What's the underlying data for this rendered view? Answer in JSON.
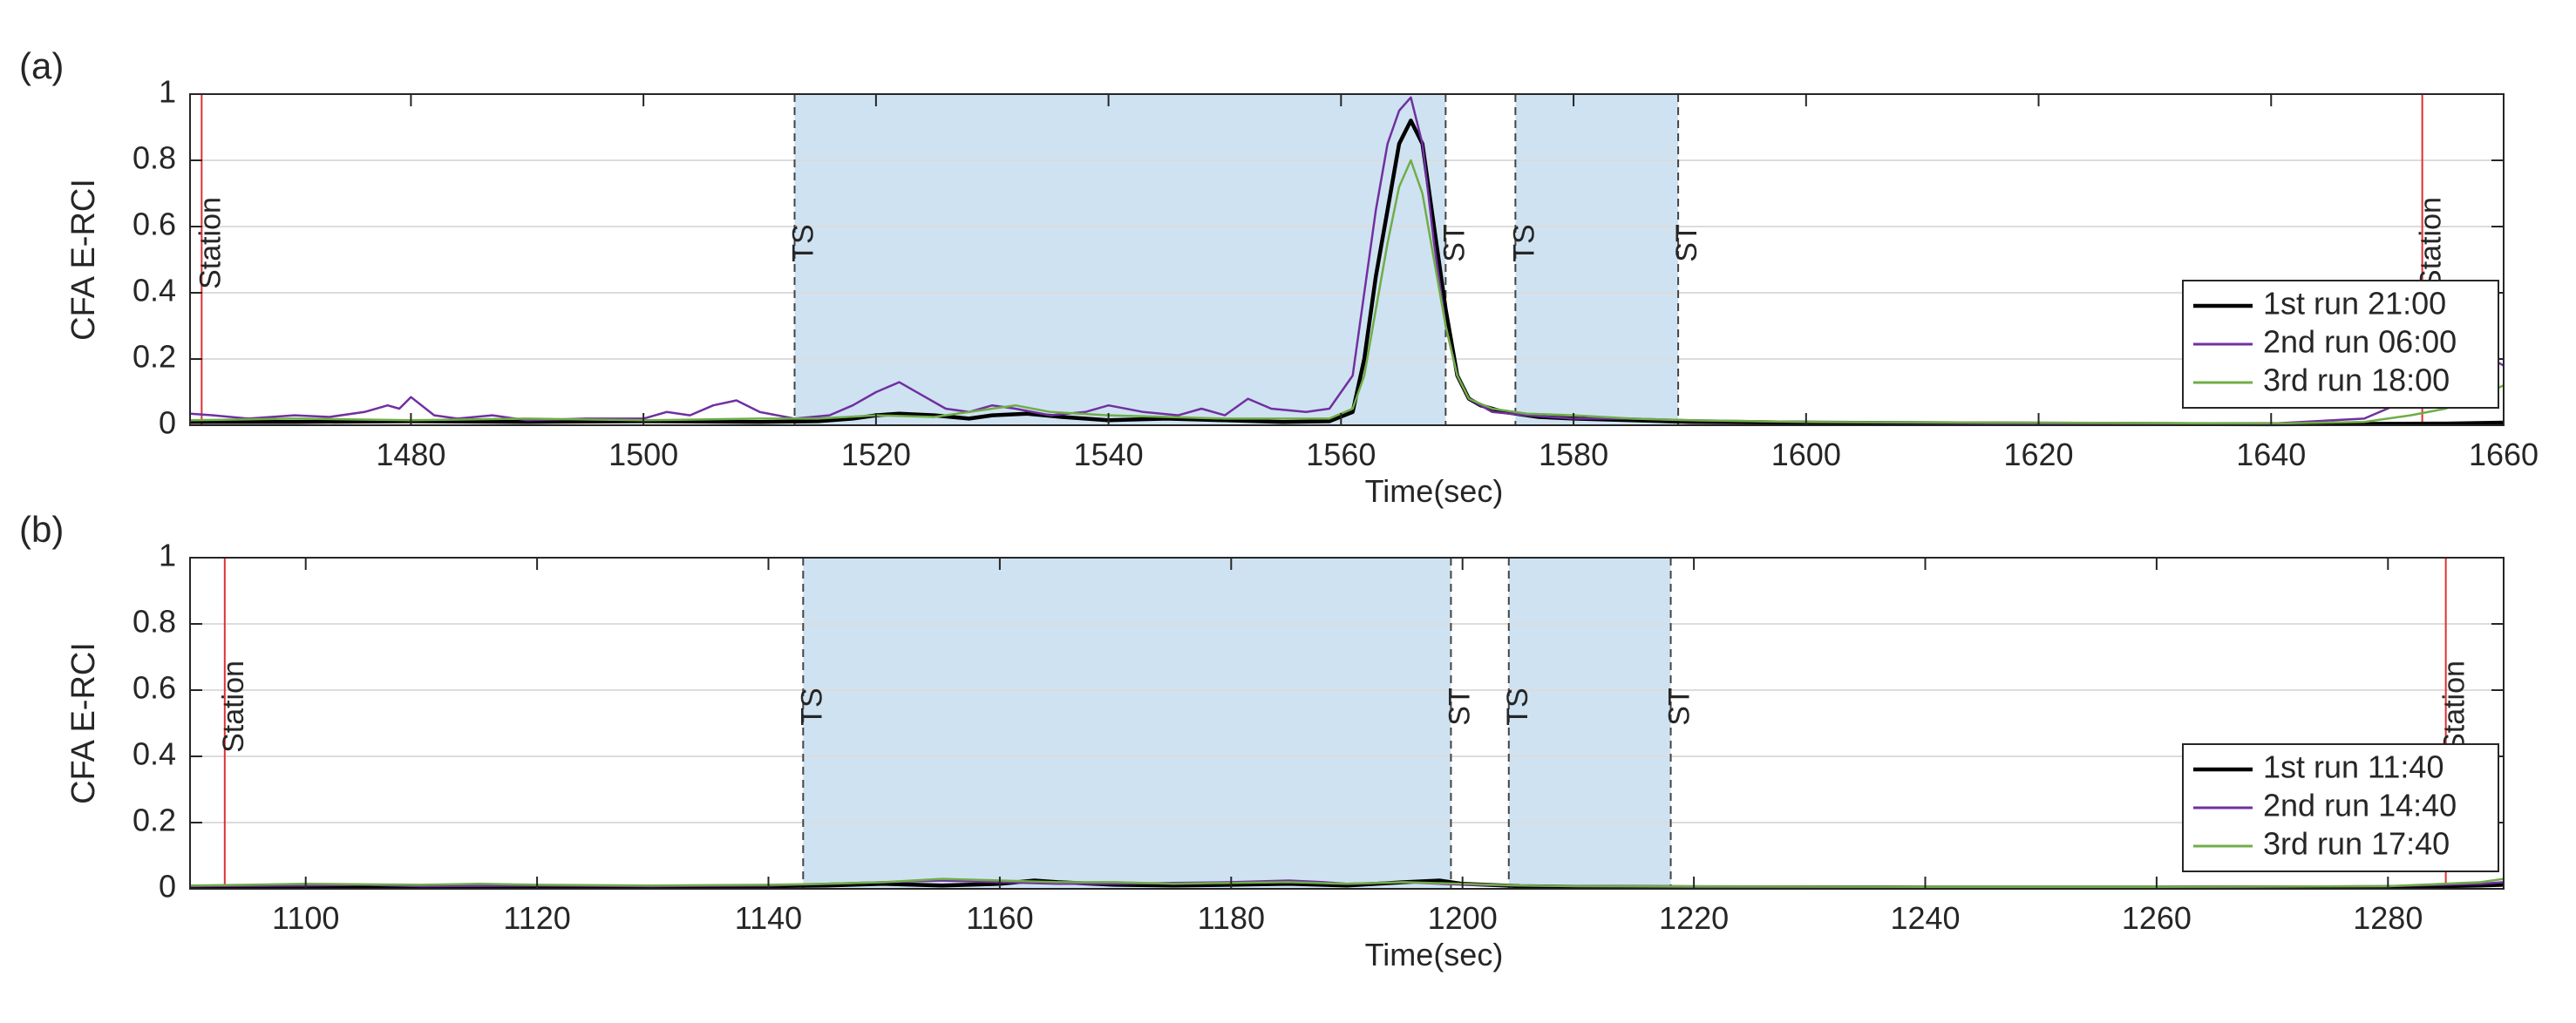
{
  "chart_data": [
    {
      "panel_label": "(a)",
      "type": "line",
      "ylabel": "CFA E-RCI",
      "xlabel": "Time(sec)",
      "xlim": [
        1461,
        1660
      ],
      "ylim": [
        0,
        1
      ],
      "xticks": [
        1480,
        1500,
        1520,
        1540,
        1560,
        1580,
        1600,
        1620,
        1640,
        1660
      ],
      "yticks": [
        0,
        0.2,
        0.4,
        0.6,
        0.8,
        1
      ],
      "ytick_labels": [
        "0",
        "0.2",
        "0.4",
        "0.6",
        "0.8",
        "1"
      ],
      "grid": "horizontal",
      "legend_position": "lower-right",
      "shaded_regions": [
        [
          1513,
          1569
        ],
        [
          1575,
          1589
        ]
      ],
      "markers": [
        {
          "x": 1462,
          "label": "Station",
          "style": "red"
        },
        {
          "x": 1513,
          "label": "TS",
          "style": "dashed"
        },
        {
          "x": 1569,
          "label": "ST",
          "style": "dashed"
        },
        {
          "x": 1575,
          "label": "TS",
          "style": "dashed"
        },
        {
          "x": 1589,
          "label": "ST",
          "style": "dashed"
        },
        {
          "x": 1653,
          "label": "Station",
          "style": "red"
        }
      ],
      "series": [
        {
          "name": "1st run 21:00",
          "color": "#000000",
          "points": [
            [
              1461,
              0.01
            ],
            [
              1470,
              0.01
            ],
            [
              1480,
              0.012
            ],
            [
              1490,
              0.01
            ],
            [
              1500,
              0.012
            ],
            [
              1510,
              0.01
            ],
            [
              1515,
              0.012
            ],
            [
              1518,
              0.02
            ],
            [
              1520,
              0.03
            ],
            [
              1522,
              0.035
            ],
            [
              1525,
              0.03
            ],
            [
              1528,
              0.02
            ],
            [
              1530,
              0.03
            ],
            [
              1533,
              0.035
            ],
            [
              1536,
              0.025
            ],
            [
              1540,
              0.015
            ],
            [
              1545,
              0.02
            ],
            [
              1550,
              0.015
            ],
            [
              1555,
              0.01
            ],
            [
              1559,
              0.012
            ],
            [
              1561,
              0.04
            ],
            [
              1562,
              0.2
            ],
            [
              1563,
              0.45
            ],
            [
              1564,
              0.65
            ],
            [
              1565,
              0.85
            ],
            [
              1566,
              0.92
            ],
            [
              1567,
              0.85
            ],
            [
              1568,
              0.6
            ],
            [
              1569,
              0.35
            ],
            [
              1570,
              0.15
            ],
            [
              1571,
              0.08
            ],
            [
              1572,
              0.06
            ],
            [
              1574,
              0.04
            ],
            [
              1577,
              0.025
            ],
            [
              1580,
              0.02
            ],
            [
              1585,
              0.015
            ],
            [
              1590,
              0.01
            ],
            [
              1600,
              0.008
            ],
            [
              1620,
              0.005
            ],
            [
              1640,
              0.003
            ],
            [
              1655,
              0.005
            ],
            [
              1660,
              0.008
            ]
          ]
        },
        {
          "name": "2nd run 06:00",
          "color": "#7030a0",
          "points": [
            [
              1461,
              0.035
            ],
            [
              1463,
              0.03
            ],
            [
              1466,
              0.02
            ],
            [
              1470,
              0.03
            ],
            [
              1473,
              0.025
            ],
            [
              1476,
              0.04
            ],
            [
              1478,
              0.06
            ],
            [
              1479,
              0.05
            ],
            [
              1480,
              0.085
            ],
            [
              1482,
              0.03
            ],
            [
              1484,
              0.02
            ],
            [
              1487,
              0.03
            ],
            [
              1490,
              0.015
            ],
            [
              1495,
              0.02
            ],
            [
              1500,
              0.02
            ],
            [
              1502,
              0.04
            ],
            [
              1504,
              0.03
            ],
            [
              1506,
              0.06
            ],
            [
              1508,
              0.075
            ],
            [
              1510,
              0.04
            ],
            [
              1513,
              0.02
            ],
            [
              1516,
              0.03
            ],
            [
              1518,
              0.06
            ],
            [
              1520,
              0.1
            ],
            [
              1522,
              0.13
            ],
            [
              1524,
              0.09
            ],
            [
              1526,
              0.05
            ],
            [
              1528,
              0.04
            ],
            [
              1530,
              0.06
            ],
            [
              1532,
              0.05
            ],
            [
              1535,
              0.03
            ],
            [
              1538,
              0.04
            ],
            [
              1540,
              0.06
            ],
            [
              1543,
              0.04
            ],
            [
              1546,
              0.03
            ],
            [
              1548,
              0.05
            ],
            [
              1550,
              0.03
            ],
            [
              1552,
              0.08
            ],
            [
              1554,
              0.05
            ],
            [
              1557,
              0.04
            ],
            [
              1559,
              0.05
            ],
            [
              1561,
              0.15
            ],
            [
              1562,
              0.4
            ],
            [
              1563,
              0.65
            ],
            [
              1564,
              0.85
            ],
            [
              1565,
              0.95
            ],
            [
              1566,
              0.99
            ],
            [
              1567,
              0.85
            ],
            [
              1568,
              0.55
            ],
            [
              1569,
              0.3
            ],
            [
              1570,
              0.15
            ],
            [
              1571,
              0.08
            ],
            [
              1573,
              0.04
            ],
            [
              1576,
              0.03
            ],
            [
              1580,
              0.02
            ],
            [
              1585,
              0.02
            ],
            [
              1590,
              0.015
            ],
            [
              1600,
              0.01
            ],
            [
              1620,
              0.005
            ],
            [
              1640,
              0.005
            ],
            [
              1648,
              0.02
            ],
            [
              1652,
              0.08
            ],
            [
              1655,
              0.16
            ],
            [
              1658,
              0.22
            ],
            [
              1660,
              0.18
            ]
          ]
        },
        {
          "name": "3rd run 18:00",
          "color": "#70ad47",
          "points": [
            [
              1461,
              0.015
            ],
            [
              1470,
              0.02
            ],
            [
              1480,
              0.015
            ],
            [
              1490,
              0.02
            ],
            [
              1500,
              0.015
            ],
            [
              1510,
              0.02
            ],
            [
              1515,
              0.02
            ],
            [
              1520,
              0.03
            ],
            [
              1525,
              0.025
            ],
            [
              1530,
              0.05
            ],
            [
              1532,
              0.06
            ],
            [
              1535,
              0.04
            ],
            [
              1540,
              0.03
            ],
            [
              1545,
              0.025
            ],
            [
              1550,
              0.02
            ],
            [
              1555,
              0.02
            ],
            [
              1559,
              0.02
            ],
            [
              1561,
              0.05
            ],
            [
              1562,
              0.15
            ],
            [
              1563,
              0.35
            ],
            [
              1564,
              0.55
            ],
            [
              1565,
              0.72
            ],
            [
              1566,
              0.8
            ],
            [
              1567,
              0.7
            ],
            [
              1568,
              0.5
            ],
            [
              1569,
              0.3
            ],
            [
              1570,
              0.15
            ],
            [
              1571,
              0.08
            ],
            [
              1573,
              0.05
            ],
            [
              1576,
              0.035
            ],
            [
              1580,
              0.03
            ],
            [
              1585,
              0.02
            ],
            [
              1590,
              0.015
            ],
            [
              1600,
              0.01
            ],
            [
              1620,
              0.008
            ],
            [
              1640,
              0.005
            ],
            [
              1648,
              0.01
            ],
            [
              1652,
              0.03
            ],
            [
              1655,
              0.05
            ],
            [
              1658,
              0.09
            ],
            [
              1660,
              0.12
            ]
          ]
        }
      ]
    },
    {
      "panel_label": "(b)",
      "type": "line",
      "ylabel": "CFA E-RCI",
      "xlabel": "Time(sec)",
      "xlim": [
        1090,
        1290
      ],
      "ylim": [
        0,
        1
      ],
      "xticks": [
        1100,
        1120,
        1140,
        1160,
        1180,
        1200,
        1220,
        1240,
        1260,
        1280
      ],
      "yticks": [
        0,
        0.2,
        0.4,
        0.6,
        0.8,
        1
      ],
      "ytick_labels": [
        "0",
        "0.2",
        "0.4",
        "0.6",
        "0.8",
        "1"
      ],
      "grid": "horizontal",
      "legend_position": "lower-right",
      "shaded_regions": [
        [
          1143,
          1199
        ],
        [
          1204,
          1218
        ]
      ],
      "markers": [
        {
          "x": 1093,
          "label": "Station",
          "style": "red"
        },
        {
          "x": 1143,
          "label": "TS",
          "style": "dashed"
        },
        {
          "x": 1199,
          "label": "ST",
          "style": "dashed"
        },
        {
          "x": 1204,
          "label": "TS",
          "style": "dashed"
        },
        {
          "x": 1218,
          "label": "ST",
          "style": "dashed"
        },
        {
          "x": 1285,
          "label": "Station",
          "style": "red"
        }
      ],
      "series": [
        {
          "name": "1st run 11:40",
          "color": "#000000",
          "points": [
            [
              1090,
              0.005
            ],
            [
              1100,
              0.006
            ],
            [
              1110,
              0.008
            ],
            [
              1120,
              0.006
            ],
            [
              1130,
              0.005
            ],
            [
              1140,
              0.008
            ],
            [
              1145,
              0.01
            ],
            [
              1150,
              0.015
            ],
            [
              1155,
              0.01
            ],
            [
              1160,
              0.015
            ],
            [
              1163,
              0.025
            ],
            [
              1165,
              0.02
            ],
            [
              1170,
              0.012
            ],
            [
              1175,
              0.01
            ],
            [
              1180,
              0.012
            ],
            [
              1185,
              0.015
            ],
            [
              1190,
              0.01
            ],
            [
              1195,
              0.02
            ],
            [
              1198,
              0.025
            ],
            [
              1200,
              0.015
            ],
            [
              1205,
              0.008
            ],
            [
              1210,
              0.006
            ],
            [
              1220,
              0.005
            ],
            [
              1240,
              0.004
            ],
            [
              1260,
              0.004
            ],
            [
              1280,
              0.005
            ],
            [
              1288,
              0.01
            ],
            [
              1290,
              0.012
            ]
          ]
        },
        {
          "name": "2nd run 14:40",
          "color": "#7030a0",
          "points": [
            [
              1090,
              0.008
            ],
            [
              1100,
              0.01
            ],
            [
              1105,
              0.012
            ],
            [
              1110,
              0.008
            ],
            [
              1120,
              0.01
            ],
            [
              1130,
              0.008
            ],
            [
              1140,
              0.01
            ],
            [
              1145,
              0.015
            ],
            [
              1150,
              0.02
            ],
            [
              1155,
              0.025
            ],
            [
              1160,
              0.02
            ],
            [
              1165,
              0.015
            ],
            [
              1170,
              0.015
            ],
            [
              1175,
              0.018
            ],
            [
              1180,
              0.02
            ],
            [
              1185,
              0.025
            ],
            [
              1188,
              0.02
            ],
            [
              1190,
              0.015
            ],
            [
              1195,
              0.02
            ],
            [
              1200,
              0.012
            ],
            [
              1205,
              0.01
            ],
            [
              1210,
              0.008
            ],
            [
              1220,
              0.006
            ],
            [
              1240,
              0.005
            ],
            [
              1260,
              0.005
            ],
            [
              1280,
              0.008
            ],
            [
              1288,
              0.015
            ],
            [
              1290,
              0.02
            ]
          ]
        },
        {
          "name": "3rd run 17:40",
          "color": "#70ad47",
          "points": [
            [
              1090,
              0.01
            ],
            [
              1095,
              0.012
            ],
            [
              1100,
              0.015
            ],
            [
              1110,
              0.012
            ],
            [
              1115,
              0.015
            ],
            [
              1120,
              0.012
            ],
            [
              1130,
              0.01
            ],
            [
              1140,
              0.012
            ],
            [
              1145,
              0.015
            ],
            [
              1150,
              0.02
            ],
            [
              1155,
              0.03
            ],
            [
              1160,
              0.025
            ],
            [
              1165,
              0.02
            ],
            [
              1170,
              0.02
            ],
            [
              1175,
              0.015
            ],
            [
              1180,
              0.018
            ],
            [
              1185,
              0.02
            ],
            [
              1190,
              0.015
            ],
            [
              1195,
              0.02
            ],
            [
              1200,
              0.015
            ],
            [
              1205,
              0.01
            ],
            [
              1210,
              0.008
            ],
            [
              1220,
              0.007
            ],
            [
              1240,
              0.006
            ],
            [
              1260,
              0.006
            ],
            [
              1280,
              0.008
            ],
            [
              1288,
              0.02
            ],
            [
              1290,
              0.03
            ]
          ]
        }
      ]
    }
  ]
}
